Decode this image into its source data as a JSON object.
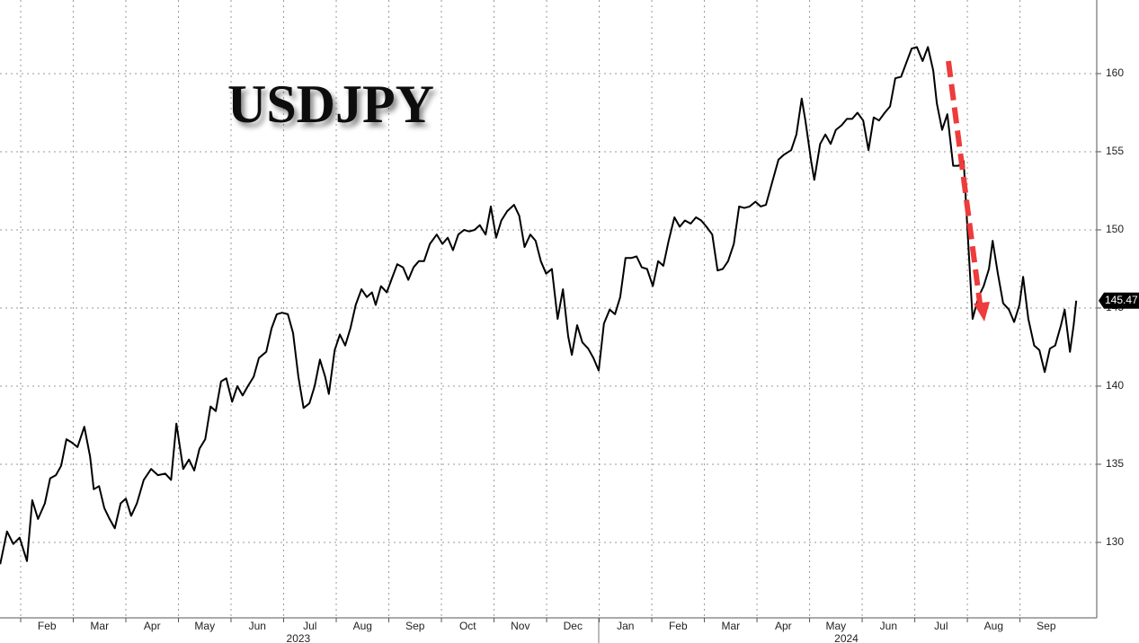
{
  "chart_data": {
    "type": "line",
    "title": "USDJPY",
    "series": [
      {
        "name": "USDJPY",
        "color": "#000000",
        "x": [
          0.61,
          0.74,
          0.86,
          0.98,
          1.12,
          1.22,
          1.33,
          1.46,
          1.56,
          1.67,
          1.77,
          1.87,
          1.97,
          2.08,
          2.21,
          2.32,
          2.39,
          2.49,
          2.59,
          2.69,
          2.79,
          2.9,
          3.0,
          3.1,
          3.21,
          3.34,
          3.48,
          3.61,
          3.75,
          3.86,
          3.96,
          4.09,
          4.2,
          4.3,
          4.4,
          4.51,
          4.61,
          4.71,
          4.81,
          4.91,
          5.02,
          5.12,
          5.22,
          5.32,
          5.43,
          5.53,
          5.67,
          5.77,
          5.87,
          5.97,
          6.08,
          6.18,
          6.28,
          6.38,
          6.49,
          6.59,
          6.69,
          6.79,
          6.86,
          6.97,
          7.07,
          7.17,
          7.27,
          7.37,
          7.48,
          7.58,
          7.68,
          7.75,
          7.85,
          7.96,
          8.06,
          8.16,
          8.27,
          8.37,
          8.47,
          8.57,
          8.67,
          8.78,
          8.91,
          9.02,
          9.12,
          9.22,
          9.32,
          9.43,
          9.53,
          9.63,
          9.73,
          9.84,
          9.94,
          10.04,
          10.14,
          10.25,
          10.38,
          10.48,
          10.58,
          10.69,
          10.79,
          10.89,
          10.99,
          11.1,
          11.21,
          11.31,
          11.41,
          11.48,
          11.58,
          11.68,
          11.79,
          11.89,
          11.99,
          12.09,
          12.2,
          12.3,
          12.4,
          12.5,
          12.61,
          12.71,
          12.81,
          12.91,
          13.02,
          13.12,
          13.22,
          13.32,
          13.43,
          13.53,
          13.63,
          13.74,
          13.84,
          13.94,
          14.04,
          14.15,
          14.25,
          14.35,
          14.45,
          14.56,
          14.66,
          14.76,
          14.86,
          14.97,
          15.07,
          15.17,
          15.31,
          15.41,
          15.51,
          15.65,
          15.75,
          15.85,
          15.92,
          16.03,
          16.09,
          16.2,
          16.3,
          16.4,
          16.5,
          16.61,
          16.71,
          16.81,
          16.91,
          17.02,
          17.12,
          17.22,
          17.32,
          17.43,
          17.53,
          17.63,
          17.74,
          17.84,
          17.94,
          18.04,
          18.15,
          18.25,
          18.35,
          18.42,
          18.52,
          18.62,
          18.73,
          18.83,
          18.93,
          19.0,
          19.1,
          19.21,
          19.31,
          19.41,
          19.48,
          19.58,
          19.68,
          19.79,
          19.89,
          19.99,
          20.06,
          20.16,
          20.27,
          20.37,
          20.47,
          20.57,
          20.67,
          20.78,
          20.85,
          20.95,
          21.02,
          21.07
        ],
        "values": [
          128.6,
          130.7,
          129.9,
          130.3,
          128.8,
          132.7,
          131.5,
          132.5,
          134.1,
          134.3,
          134.9,
          136.6,
          136.4,
          136.1,
          137.4,
          135.5,
          133.4,
          133.6,
          132.2,
          131.5,
          130.9,
          132.5,
          132.8,
          131.7,
          132.5,
          134.0,
          134.7,
          134.3,
          134.4,
          134.0,
          137.6,
          134.7,
          135.3,
          134.6,
          136.0,
          136.6,
          138.7,
          138.4,
          140.3,
          140.5,
          139.0,
          140.0,
          139.4,
          140.0,
          140.6,
          141.8,
          142.2,
          143.7,
          144.6,
          144.7,
          144.6,
          143.4,
          140.6,
          138.6,
          138.9,
          140.0,
          141.7,
          140.6,
          139.5,
          142.3,
          143.3,
          142.6,
          143.7,
          145.2,
          146.2,
          145.7,
          146.0,
          145.2,
          146.4,
          146.0,
          146.9,
          147.8,
          147.6,
          146.8,
          147.6,
          148.0,
          148.0,
          149.1,
          149.7,
          149.1,
          149.5,
          148.7,
          149.7,
          150.0,
          149.9,
          150.0,
          150.3,
          149.7,
          151.5,
          149.5,
          150.6,
          151.2,
          151.6,
          150.9,
          148.9,
          149.7,
          149.3,
          148.0,
          147.2,
          147.5,
          144.3,
          146.2,
          143.2,
          142.0,
          143.9,
          142.8,
          142.4,
          141.8,
          141.0,
          144.0,
          144.9,
          144.6,
          145.7,
          148.2,
          148.2,
          148.3,
          147.6,
          147.5,
          146.4,
          148.0,
          147.7,
          149.3,
          150.8,
          150.2,
          150.6,
          150.4,
          150.8,
          150.6,
          150.2,
          149.7,
          147.4,
          147.5,
          148.0,
          149.1,
          151.5,
          151.4,
          151.5,
          151.8,
          151.5,
          151.6,
          153.3,
          154.5,
          154.8,
          155.1,
          156.1,
          158.4,
          157.0,
          154.4,
          153.2,
          155.5,
          156.1,
          155.5,
          156.4,
          156.7,
          157.1,
          157.1,
          157.5,
          157.0,
          155.1,
          157.2,
          157.0,
          157.5,
          157.9,
          159.7,
          159.8,
          160.7,
          161.6,
          161.7,
          160.8,
          161.7,
          160.2,
          158.1,
          156.4,
          157.4,
          154.1,
          154.1,
          154.4,
          150.1,
          144.3,
          145.7,
          146.4,
          147.5,
          149.3,
          147.2,
          145.3,
          144.9,
          144.1,
          145.2,
          147.0,
          144.3,
          142.6,
          142.3,
          140.9,
          142.4,
          142.6,
          143.9,
          144.9,
          142.2,
          143.9,
          145.47
        ]
      }
    ],
    "last_value": 145.47,
    "xlim": [
      0.607,
      21.46
    ],
    "xticks": [
      {
        "value": 1,
        "label": "Feb"
      },
      {
        "value": 2,
        "label": "Mar"
      },
      {
        "value": 3,
        "label": "Apr"
      },
      {
        "value": 4,
        "label": "May"
      },
      {
        "value": 5,
        "label": "Jun"
      },
      {
        "value": 6,
        "label": "Jul"
      },
      {
        "value": 7,
        "label": "Aug"
      },
      {
        "value": 8,
        "label": "Sep"
      },
      {
        "value": 9,
        "label": "Oct"
      },
      {
        "value": 10,
        "label": "Nov"
      },
      {
        "value": 11,
        "label": "Dec"
      },
      {
        "value": 12,
        "label": "Jan"
      },
      {
        "value": 13,
        "label": "Feb"
      },
      {
        "value": 14,
        "label": "Mar"
      },
      {
        "value": 15,
        "label": "Apr"
      },
      {
        "value": 16,
        "label": "May"
      },
      {
        "value": 17,
        "label": "Jun"
      },
      {
        "value": 18,
        "label": "Jul"
      },
      {
        "value": 19,
        "label": "Aug"
      },
      {
        "value": 20,
        "label": "Sep"
      }
    ],
    "year_labels": [
      {
        "value": 6.28,
        "label": "2023"
      },
      {
        "value": 16.7,
        "label": "2024"
      }
    ],
    "ylim": [
      125.17,
      164.71
    ],
    "yticks": [
      130,
      135,
      140,
      145,
      150,
      155,
      160
    ],
    "grid": true
  }
}
